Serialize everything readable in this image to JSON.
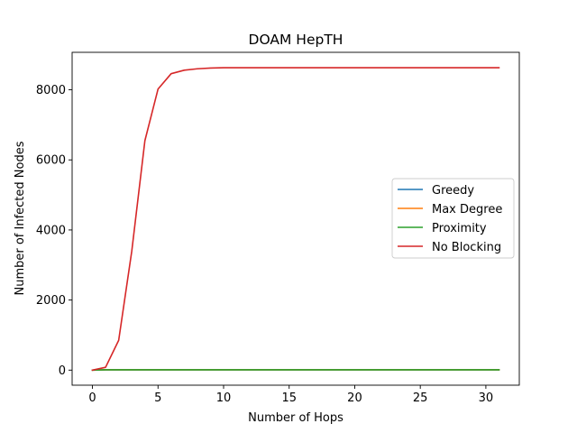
{
  "chart_data": {
    "type": "line",
    "title": "DOAM HepTH",
    "xlabel": "Number of Hops",
    "ylabel": "Number of Infected Nodes",
    "xlim": [
      -1.55,
      32.55
    ],
    "ylim": [
      -430,
      9070
    ],
    "xticks": [
      0,
      5,
      10,
      15,
      20,
      25,
      30
    ],
    "yticks": [
      0,
      2000,
      4000,
      6000,
      8000
    ],
    "grid": false,
    "legend_position": "center-right",
    "x": [
      0,
      1,
      2,
      3,
      4,
      5,
      6,
      7,
      8,
      9,
      10,
      11,
      12,
      13,
      14,
      15,
      16,
      17,
      18,
      19,
      20,
      21,
      22,
      23,
      24,
      25,
      26,
      27,
      28,
      29,
      30,
      31
    ],
    "series": [
      {
        "name": "Greedy",
        "color": "#1f77b4",
        "values": [
          0,
          10,
          10,
          10,
          10,
          10,
          10,
          10,
          10,
          10,
          10,
          10,
          10,
          10,
          10,
          10,
          10,
          10,
          10,
          10,
          10,
          10,
          10,
          10,
          10,
          10,
          10,
          10,
          10,
          10,
          10,
          10
        ]
      },
      {
        "name": "Max Degree",
        "color": "#ff7f0e",
        "values": [
          0,
          10,
          10,
          10,
          10,
          10,
          10,
          10,
          10,
          10,
          10,
          10,
          10,
          10,
          10,
          10,
          10,
          10,
          10,
          10,
          10,
          10,
          10,
          10,
          10,
          10,
          10,
          10,
          10,
          10,
          10,
          10
        ]
      },
      {
        "name": "Proximity",
        "color": "#2ca02c",
        "values": [
          0,
          10,
          10,
          10,
          10,
          10,
          10,
          10,
          10,
          10,
          10,
          10,
          10,
          10,
          10,
          10,
          10,
          10,
          10,
          10,
          10,
          10,
          10,
          10,
          10,
          10,
          10,
          10,
          10,
          10,
          10,
          10
        ]
      },
      {
        "name": "No Blocking",
        "color": "#d62728",
        "values": [
          0,
          80,
          850,
          3400,
          6550,
          8020,
          8460,
          8560,
          8600,
          8620,
          8630,
          8630,
          8630,
          8630,
          8630,
          8630,
          8630,
          8630,
          8630,
          8630,
          8630,
          8630,
          8630,
          8630,
          8630,
          8630,
          8630,
          8630,
          8630,
          8630,
          8630,
          8630
        ]
      }
    ]
  }
}
